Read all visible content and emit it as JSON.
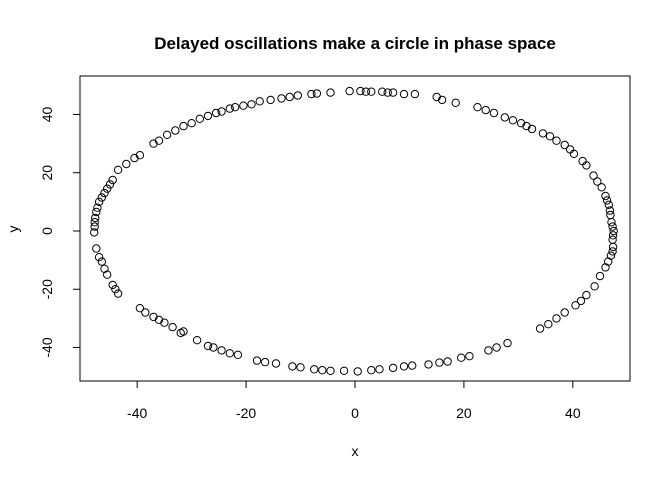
{
  "chart_data": {
    "type": "scatter",
    "title": "Delayed oscillations make a circle in phase space",
    "xlabel": "x",
    "ylabel": "y",
    "xlim": [
      -50.5,
      50.5
    ],
    "ylim": [
      -51.5,
      53.2
    ],
    "xticks": [
      -40,
      -20,
      0,
      20,
      40
    ],
    "yticks": [
      -40,
      -20,
      0,
      20,
      40
    ],
    "xtick_labels": [
      "-40",
      "-20",
      "0",
      "20",
      "40"
    ],
    "ytick_labels": [
      "-40",
      "-20",
      "0",
      "20",
      "40"
    ],
    "grid": false,
    "marker": "open-circle",
    "point_color": "#000000",
    "points": [
      [
        47.5,
        0
      ],
      [
        47.4,
        -1.5
      ],
      [
        47.3,
        -3
      ],
      [
        47.3,
        1.5
      ],
      [
        47.1,
        3
      ],
      [
        46.9,
        5.5
      ],
      [
        46.8,
        7
      ],
      [
        46.6,
        9
      ],
      [
        46.3,
        10.5
      ],
      [
        46.0,
        12
      ],
      [
        45.3,
        15
      ],
      [
        44.5,
        17
      ],
      [
        43.8,
        19
      ],
      [
        42.5,
        22.5
      ],
      [
        41.8,
        24
      ],
      [
        40.2,
        26.5
      ],
      [
        39.5,
        28
      ],
      [
        38.5,
        29.5
      ],
      [
        37.0,
        31
      ],
      [
        35.8,
        32.5
      ],
      [
        34.5,
        33.5
      ],
      [
        32.5,
        35
      ],
      [
        31.5,
        36
      ],
      [
        30.5,
        37
      ],
      [
        29.0,
        38
      ],
      [
        27.5,
        39
      ],
      [
        25.5,
        40.5
      ],
      [
        24.0,
        41.5
      ],
      [
        22.5,
        42.5
      ],
      [
        18.5,
        44
      ],
      [
        16.0,
        45
      ],
      [
        15.0,
        46
      ],
      [
        11.0,
        47
      ],
      [
        9.0,
        47
      ],
      [
        7.0,
        47.5
      ],
      [
        6.0,
        47.5
      ],
      [
        5.0,
        47.8
      ],
      [
        3.0,
        47.8
      ],
      [
        2.0,
        47.8
      ],
      [
        1.0,
        48
      ],
      [
        -1.0,
        48
      ],
      [
        -4.5,
        47.5
      ],
      [
        -7.0,
        47.2
      ],
      [
        -8.0,
        47
      ],
      [
        -10.5,
        46.5
      ],
      [
        -12.0,
        46
      ],
      [
        -13.5,
        45.5
      ],
      [
        -15.5,
        45
      ],
      [
        -17.5,
        44.5
      ],
      [
        -19.0,
        43.5
      ],
      [
        -20.5,
        43
      ],
      [
        -22.0,
        42.5
      ],
      [
        -23.0,
        42
      ],
      [
        -24.5,
        41
      ],
      [
        -25.5,
        40.5
      ],
      [
        -27.0,
        39.5
      ],
      [
        -28.5,
        38.5
      ],
      [
        -30.0,
        37
      ],
      [
        -31.5,
        36
      ],
      [
        -33.0,
        34.5
      ],
      [
        -34.5,
        33
      ],
      [
        -36.0,
        31
      ],
      [
        -37.0,
        30
      ],
      [
        -39.5,
        26
      ],
      [
        -40.5,
        25
      ],
      [
        -42.0,
        23
      ],
      [
        -43.5,
        21
      ],
      [
        -44.5,
        17.5
      ],
      [
        -45.0,
        16
      ],
      [
        -45.5,
        14.5
      ],
      [
        -46.0,
        13
      ],
      [
        -46.5,
        11.5
      ],
      [
        -47.0,
        10
      ],
      [
        -47.3,
        8
      ],
      [
        -47.5,
        6.5
      ],
      [
        -47.7,
        4.5
      ],
      [
        -47.8,
        3
      ],
      [
        -47.8,
        1.5
      ],
      [
        -47.9,
        -0.5
      ],
      [
        -47.5,
        -6
      ],
      [
        -47.0,
        -9
      ],
      [
        -46.5,
        -10.5
      ],
      [
        -46.0,
        -13
      ],
      [
        -45.5,
        -15
      ],
      [
        -44.5,
        -18.5
      ],
      [
        -44.0,
        -20
      ],
      [
        -43.5,
        -21.5
      ],
      [
        -39.5,
        -26.5
      ],
      [
        -38.5,
        -28
      ],
      [
        -37.0,
        -29.5
      ],
      [
        -36.0,
        -30.5
      ],
      [
        -35.0,
        -31.5
      ],
      [
        -33.5,
        -33
      ],
      [
        -32.0,
        -35
      ],
      [
        -31.5,
        -34.5
      ],
      [
        -29.0,
        -37.5
      ],
      [
        -27.0,
        -39.5
      ],
      [
        -26.0,
        -40
      ],
      [
        -24.5,
        -41
      ],
      [
        -23.0,
        -42
      ],
      [
        -21.5,
        -42.5
      ],
      [
        -18.0,
        -44.5
      ],
      [
        -16.5,
        -45
      ],
      [
        -14.5,
        -45.5
      ],
      [
        -11.5,
        -46.5
      ],
      [
        -10.0,
        -46.8
      ],
      [
        -7.5,
        -47.5
      ],
      [
        -6.0,
        -47.8
      ],
      [
        -4.5,
        -48
      ],
      [
        -2.0,
        -48
      ],
      [
        0.5,
        -48.2
      ],
      [
        3.0,
        -47.8
      ],
      [
        4.5,
        -47.5
      ],
      [
        7.0,
        -47
      ],
      [
        9.0,
        -46.5
      ],
      [
        10.5,
        -46.2
      ],
      [
        13.5,
        -45.8
      ],
      [
        15.5,
        -45.2
      ],
      [
        17.0,
        -44.8
      ],
      [
        19.5,
        -43.5
      ],
      [
        21.0,
        -43
      ],
      [
        24.5,
        -41
      ],
      [
        26.0,
        -40
      ],
      [
        28.0,
        -38.5
      ],
      [
        34.0,
        -33.5
      ],
      [
        35.5,
        -32
      ],
      [
        37.0,
        -30
      ],
      [
        38.5,
        -28
      ],
      [
        40.5,
        -25.5
      ],
      [
        41.5,
        -24
      ],
      [
        42.5,
        -22
      ],
      [
        44.0,
        -19
      ],
      [
        45.0,
        -15.5
      ],
      [
        46.0,
        -12.5
      ],
      [
        46.5,
        -10.5
      ],
      [
        47.0,
        -8.5
      ],
      [
        47.3,
        -7
      ],
      [
        47.4,
        -5.5
      ]
    ]
  }
}
